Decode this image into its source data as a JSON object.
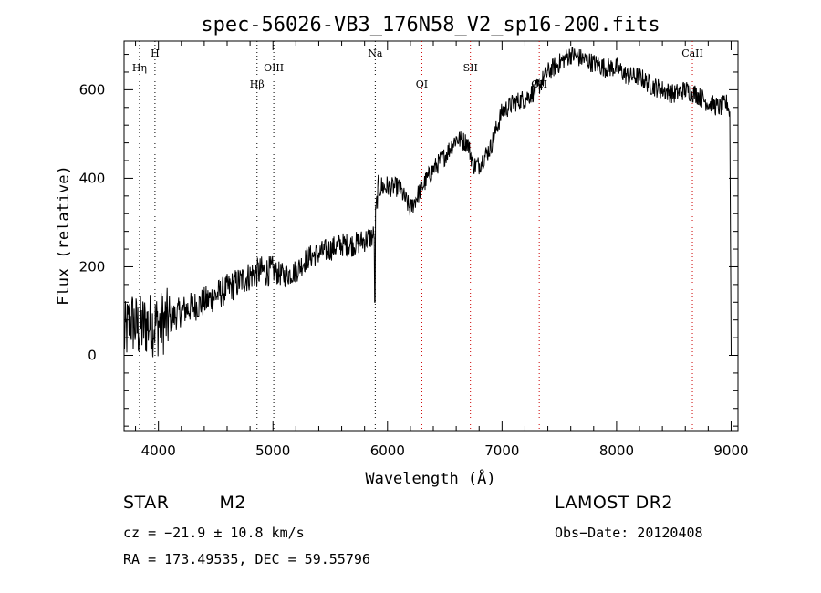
{
  "chart_data": {
    "type": "line",
    "title": "spec-56026-VB3_176N58_V2_sp16-200.fits",
    "xlabel": "Wavelength (Å)",
    "ylabel": "Flux (relative)",
    "xlim": [
      3700,
      9060
    ],
    "ylim": [
      -170,
      710
    ],
    "xticks": [
      4000,
      5000,
      6000,
      7000,
      8000,
      9000
    ],
    "yticks": [
      0,
      200,
      400,
      600
    ],
    "spectrum_anchors": {
      "x": [
        3700,
        3760,
        3820,
        3900,
        4000,
        4100,
        4200,
        4400,
        4600,
        4800,
        4900,
        5000,
        5100,
        5200,
        5300,
        5400,
        5500,
        5600,
        5700,
        5800,
        5880,
        5920,
        6000,
        6100,
        6200,
        6300,
        6400,
        6500,
        6600,
        6700,
        6750,
        6800,
        6900,
        7000,
        7100,
        7200,
        7300,
        7400,
        7500,
        7600,
        7700,
        7800,
        7900,
        8000,
        8100,
        8200,
        8300,
        8400,
        8500,
        8600,
        8700,
        8800,
        8900,
        8970,
        8990,
        9000
      ],
      "y": [
        40,
        80,
        60,
        70,
        70,
        80,
        100,
        120,
        150,
        180,
        190,
        190,
        180,
        190,
        220,
        230,
        240,
        250,
        250,
        260,
        270,
        380,
        380,
        380,
        330,
        380,
        420,
        450,
        490,
        480,
        430,
        430,
        470,
        550,
        570,
        580,
        600,
        640,
        660,
        680,
        670,
        660,
        650,
        650,
        630,
        630,
        610,
        600,
        590,
        600,
        590,
        570,
        560,
        570,
        540,
        0
      ]
    },
    "spectrum_dips": [
      {
        "x": 5890,
        "y": 120
      }
    ],
    "emission_lines": [
      {
        "label": "Hη",
        "wavelength": 3835,
        "row": 2,
        "color": "#000000"
      },
      {
        "label": "H",
        "wavelength": 3970,
        "row": 1,
        "color": "#000000"
      },
      {
        "label": "Hβ",
        "wavelength": 4861,
        "row": 3,
        "color": "#000000"
      },
      {
        "label": "OIII",
        "wavelength": 5007,
        "row": 2,
        "color": "#000000"
      },
      {
        "label": "Na",
        "wavelength": 5893,
        "row": 1,
        "color": "#000000"
      },
      {
        "label": "OI",
        "wavelength": 6300,
        "row": 3,
        "color": "#cc0000"
      },
      {
        "label": "SII",
        "wavelength": 6724,
        "row": 2,
        "color": "#cc0000"
      },
      {
        "label": "OII",
        "wavelength": 7325,
        "row": 3,
        "color": "#cc0000"
      },
      {
        "label": "CaII",
        "wavelength": 8662,
        "row": 1,
        "color": "#cc0000"
      }
    ]
  },
  "info": {
    "class_label": "STAR",
    "subclass": "M2",
    "survey": "LAMOST DR2",
    "cz": "cz = −21.9 ± 10.8 km/s",
    "obs_date": "Obs−Date: 20120408",
    "coords": "RA = 173.49535, DEC =  59.55796"
  }
}
